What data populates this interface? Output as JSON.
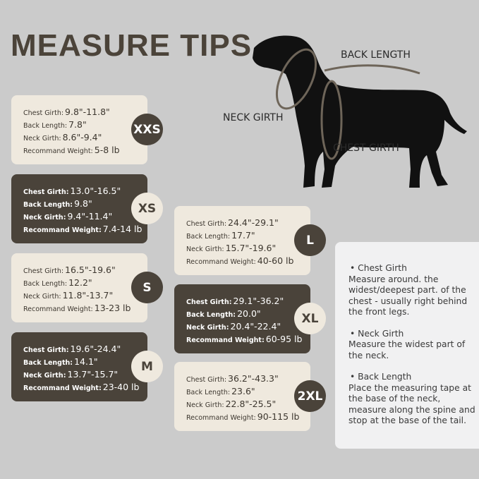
{
  "title": "MEASURE TIPS",
  "diagram": {
    "back_length": "BACK LENGTH",
    "neck_girth": "NECK GIRTH",
    "chest_girth": "CHEST GIRTH"
  },
  "labels": {
    "chest": "Chest Girth:",
    "back": "Back Length:",
    "neck": "Neck Girth:",
    "weight": "Recommand Weight:"
  },
  "sizes": [
    {
      "size": "XXS",
      "chest": "9.8\"-11.8\"",
      "back": "7.8\"",
      "neck": "8.6\"-9.4\"",
      "weight": "5-8 lb"
    },
    {
      "size": "XS",
      "chest": "13.0\"-16.5\"",
      "back": "9.8\"",
      "neck": "9.4\"-11.4\"",
      "weight": "7.4-14 lb"
    },
    {
      "size": "S",
      "chest": "16.5\"-19.6\"",
      "back": "12.2\"",
      "neck": "11.8\"-13.7\"",
      "weight": "13-23 lb"
    },
    {
      "size": "M",
      "chest": "19.6\"-24.4\"",
      "back": "14.1\"",
      "neck": "13.7\"-15.7\"",
      "weight": "23-40 lb"
    },
    {
      "size": "L",
      "chest": "24.4\"-29.1\"",
      "back": "17.7\"",
      "neck": "15.7\"-19.6\"",
      "weight": "40-60 lb"
    },
    {
      "size": "XL",
      "chest": "29.1\"-36.2\"",
      "back": "20.0\"",
      "neck": "20.4\"-22.4\"",
      "weight": "60-95 lb"
    },
    {
      "size": "2XL",
      "chest": "36.2\"-43.3\"",
      "back": "23.6\"",
      "neck": "22.8\"-25.5\"",
      "weight": "90-115 lb"
    }
  ],
  "tips": [
    {
      "heading": "• Chest Girth",
      "text": "Measure around. the widest/deepest part. of the chest - usually right behind the front legs."
    },
    {
      "heading": "• Neck Girth",
      "text": "Measure the widest part of the neck."
    },
    {
      "heading": "• Back Length",
      "text": "Place the measuring tape at the base of the neck, measure along the spine and stop at the base of the tail."
    }
  ],
  "colors": {
    "dark": "#4a433a",
    "cream": "#efe9de",
    "background": "#cbcbcb"
  }
}
